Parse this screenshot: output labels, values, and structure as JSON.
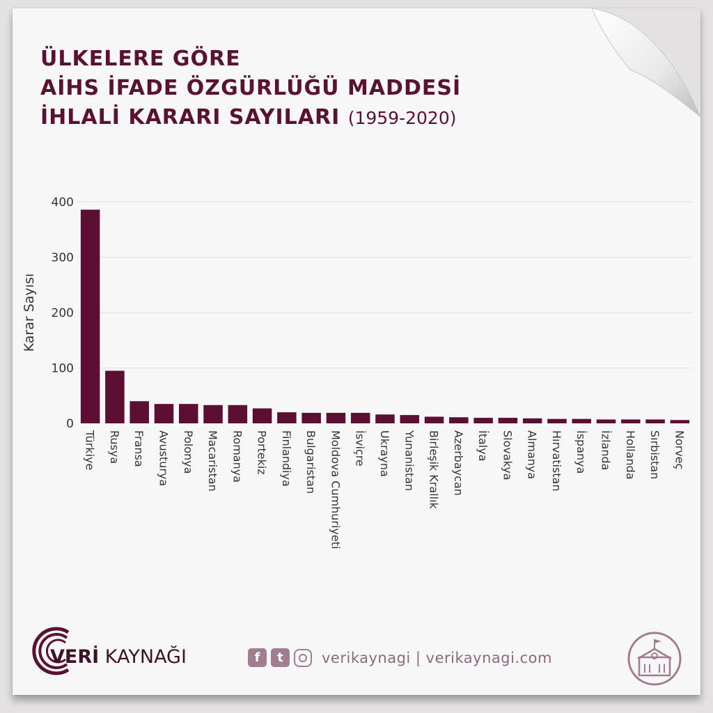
{
  "header": {
    "title_line1": "ÜLKELERE GÖRE",
    "title_line2": "AİHS İFADE ÖZGÜRLÜĞÜ MADDESİ",
    "title_line3": "İHLALİ KARARI SAYILARI",
    "title_years": "(1959-2020)"
  },
  "chart_data": {
    "type": "bar",
    "ylabel": "Karar Sayısı",
    "ylim": [
      0,
      400
    ],
    "yticks": [
      0,
      100,
      200,
      300,
      400
    ],
    "grid": true,
    "bar_color": "#5c0f32",
    "categories": [
      "Türkiye",
      "Rusya",
      "Fransa",
      "Avusturya",
      "Polonya",
      "Macaristan",
      "Romanya",
      "Portekiz",
      "Finlandiya",
      "Bulgaristan",
      "Moldova Cumhuriyeti",
      "İsviçre",
      "Ukrayna",
      "Yunanistan",
      "Birleşik Krallık",
      "Azerbaycan",
      "İtalya",
      "Slovakya",
      "Almanya",
      "Hırvatistan",
      "İspanya",
      "İzlanda",
      "Hollanda",
      "Sırbistan",
      "Norveç"
    ],
    "values": [
      386,
      95,
      40,
      35,
      35,
      33,
      33,
      27,
      20,
      19,
      19,
      19,
      16,
      15,
      12,
      11,
      10,
      10,
      9,
      8,
      8,
      7,
      7,
      7,
      6
    ]
  },
  "footer": {
    "brand_bold": "VERİ",
    "brand_rest": " KAYNAĞI",
    "social_handle": "verikaynagi | verikaynagi.com",
    "facebook_glyph": "f",
    "twitter_glyph": "t"
  },
  "colors": {
    "accent": "#5a1232",
    "muted": "#a07d8f"
  },
  "icons": [
    "logo-arc-icon",
    "facebook-icon",
    "twitter-icon",
    "instagram-icon",
    "school-building-icon"
  ]
}
